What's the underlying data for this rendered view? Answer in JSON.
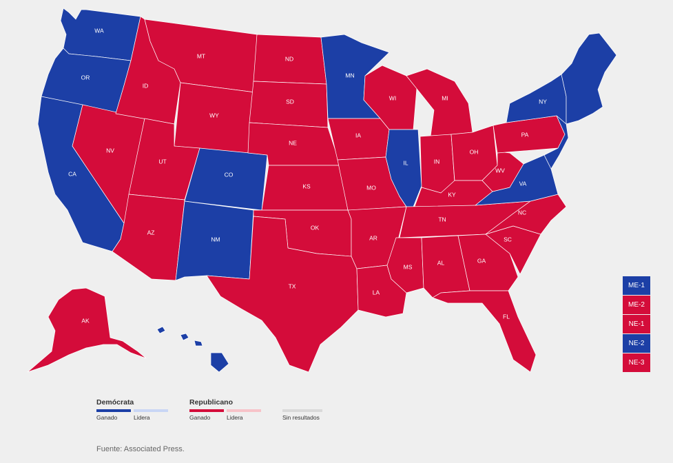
{
  "colors": {
    "dem_won": "#1c3fa6",
    "dem_lead": "#c9d6f5",
    "rep_won": "#d40c3a",
    "rep_lead": "#f7c3c9",
    "no_results": "#d9d9d9"
  },
  "states": [
    {
      "id": "WA",
      "label": "WA",
      "party": "dem"
    },
    {
      "id": "OR",
      "label": "OR",
      "party": "dem"
    },
    {
      "id": "CA",
      "label": "CA",
      "party": "dem"
    },
    {
      "id": "NV",
      "label": "NV",
      "party": "rep"
    },
    {
      "id": "ID",
      "label": "ID",
      "party": "rep"
    },
    {
      "id": "MT",
      "label": "MT",
      "party": "rep"
    },
    {
      "id": "WY",
      "label": "WY",
      "party": "rep"
    },
    {
      "id": "UT",
      "label": "UT",
      "party": "rep"
    },
    {
      "id": "AZ",
      "label": "AZ",
      "party": "rep"
    },
    {
      "id": "CO",
      "label": "CO",
      "party": "dem"
    },
    {
      "id": "NM",
      "label": "NM",
      "party": "dem"
    },
    {
      "id": "ND",
      "label": "ND",
      "party": "rep"
    },
    {
      "id": "SD",
      "label": "SD",
      "party": "rep"
    },
    {
      "id": "NE",
      "label": "NE",
      "party": "rep"
    },
    {
      "id": "KS",
      "label": "KS",
      "party": "rep"
    },
    {
      "id": "OK",
      "label": "OK",
      "party": "rep"
    },
    {
      "id": "TX",
      "label": "TX",
      "party": "rep"
    },
    {
      "id": "MN",
      "label": "MN",
      "party": "dem"
    },
    {
      "id": "IA",
      "label": "IA",
      "party": "rep"
    },
    {
      "id": "MO",
      "label": "MO",
      "party": "rep"
    },
    {
      "id": "AR",
      "label": "AR",
      "party": "rep"
    },
    {
      "id": "LA",
      "label": "LA",
      "party": "rep"
    },
    {
      "id": "WI",
      "label": "WI",
      "party": "rep"
    },
    {
      "id": "IL",
      "label": "IL",
      "party": "dem"
    },
    {
      "id": "MI",
      "label": "MI",
      "party": "rep"
    },
    {
      "id": "IN",
      "label": "IN",
      "party": "rep"
    },
    {
      "id": "OH",
      "label": "OH",
      "party": "rep"
    },
    {
      "id": "KY",
      "label": "KY",
      "party": "rep"
    },
    {
      "id": "TN",
      "label": "TN",
      "party": "rep"
    },
    {
      "id": "MS",
      "label": "MS",
      "party": "rep"
    },
    {
      "id": "AL",
      "label": "AL",
      "party": "rep"
    },
    {
      "id": "GA",
      "label": "GA",
      "party": "rep"
    },
    {
      "id": "FL",
      "label": "FL",
      "party": "rep"
    },
    {
      "id": "SC",
      "label": "SC",
      "party": "rep"
    },
    {
      "id": "NC",
      "label": "NC",
      "party": "rep"
    },
    {
      "id": "VA",
      "label": "VA",
      "party": "dem"
    },
    {
      "id": "WV",
      "label": "WV",
      "party": "rep"
    },
    {
      "id": "PA",
      "label": "PA",
      "party": "rep"
    },
    {
      "id": "NY",
      "label": "NY",
      "party": "dem"
    },
    {
      "id": "NE-REGION",
      "label": "",
      "party": "dem"
    },
    {
      "id": "MID-ATL",
      "label": "",
      "party": "dem"
    },
    {
      "id": "AK",
      "label": "AK",
      "party": "rep"
    },
    {
      "id": "HI",
      "label": "",
      "party": "dem"
    }
  ],
  "districts": [
    {
      "label": "ME-1",
      "party": "dem"
    },
    {
      "label": "ME-2",
      "party": "rep"
    },
    {
      "label": "NE-1",
      "party": "rep"
    },
    {
      "label": "NE-2",
      "party": "dem"
    },
    {
      "label": "NE-3",
      "party": "rep"
    }
  ],
  "legend": {
    "dem_title": "Demócrata",
    "rep_title": "Republicano",
    "won": "Ganado",
    "lead": "Lidera",
    "no_results": "Sin resultados"
  },
  "source": "Fuente: Associated Press."
}
